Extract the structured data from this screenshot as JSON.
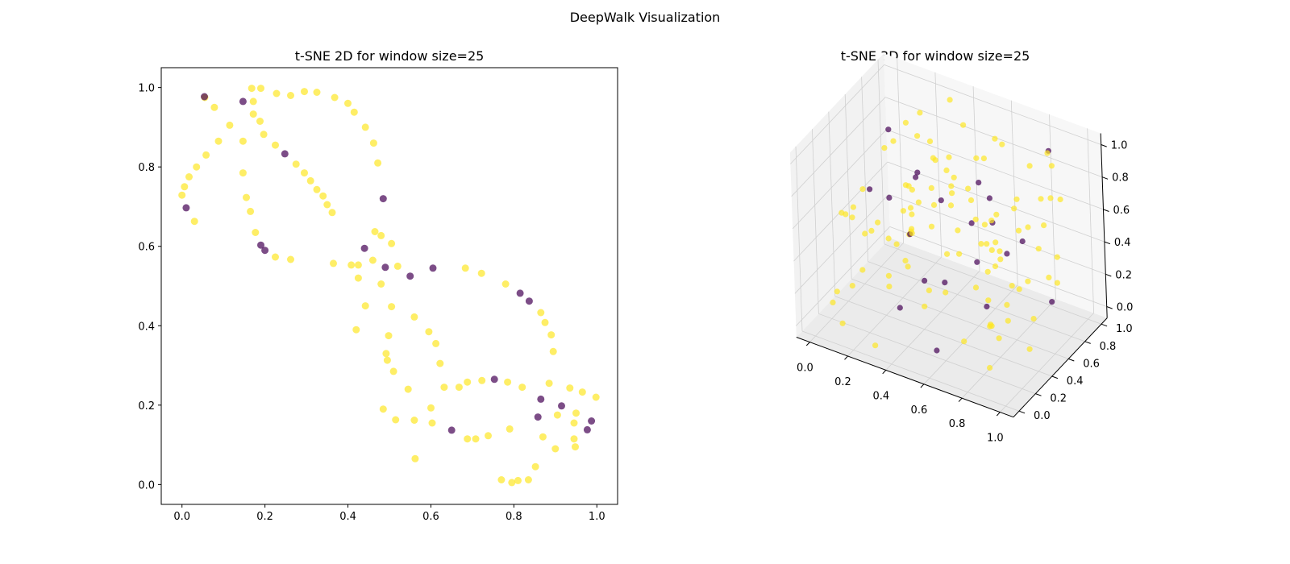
{
  "figure": {
    "suptitle": "DeepWalk Visualization"
  },
  "colors": {
    "class_a": "#fde725",
    "class_b": "#440154",
    "pane": "#f2f2f2",
    "grid": "#d0d0d0"
  },
  "chart_data": [
    {
      "type": "scatter",
      "title": "t-SNE 2D for window size=25",
      "xlim": [
        -0.05,
        1.05
      ],
      "ylim": [
        -0.05,
        1.05
      ],
      "xticks": [
        "0.0",
        "0.2",
        "0.4",
        "0.6",
        "0.8",
        "1.0"
      ],
      "yticks": [
        "0.0",
        "0.2",
        "0.4",
        "0.6",
        "0.8",
        "1.0"
      ],
      "grid": false,
      "point_alpha": 0.7,
      "points": [
        [
          0.0,
          0.729,
          0
        ],
        [
          0.006,
          0.75,
          0
        ],
        [
          0.017,
          0.775,
          0
        ],
        [
          0.03,
          0.663,
          0
        ],
        [
          0.035,
          0.8,
          0
        ],
        [
          0.058,
          0.83,
          0
        ],
        [
          0.078,
          0.95,
          0
        ],
        [
          0.088,
          0.865,
          0
        ],
        [
          0.115,
          0.905,
          0
        ],
        [
          0.147,
          0.865,
          0
        ],
        [
          0.147,
          0.785,
          0
        ],
        [
          0.155,
          0.723,
          0
        ],
        [
          0.165,
          0.688,
          0
        ],
        [
          0.168,
          0.998,
          0
        ],
        [
          0.172,
          0.965,
          0
        ],
        [
          0.172,
          0.933,
          0
        ],
        [
          0.177,
          0.635,
          0
        ],
        [
          0.19,
          0.998,
          0
        ],
        [
          0.188,
          0.915,
          0
        ],
        [
          0.197,
          0.882,
          0
        ],
        [
          0.228,
          0.985,
          0
        ],
        [
          0.225,
          0.855,
          0
        ],
        [
          0.225,
          0.573,
          0
        ],
        [
          0.262,
          0.98,
          0
        ],
        [
          0.262,
          0.567,
          0
        ],
        [
          0.275,
          0.807,
          0
        ],
        [
          0.295,
          0.99,
          0
        ],
        [
          0.295,
          0.785,
          0
        ],
        [
          0.31,
          0.765,
          0
        ],
        [
          0.325,
          0.988,
          0
        ],
        [
          0.325,
          0.743,
          0
        ],
        [
          0.34,
          0.727,
          0
        ],
        [
          0.35,
          0.705,
          0
        ],
        [
          0.362,
          0.685,
          0
        ],
        [
          0.368,
          0.975,
          0
        ],
        [
          0.365,
          0.557,
          0
        ],
        [
          0.4,
          0.96,
          0
        ],
        [
          0.408,
          0.553,
          0
        ],
        [
          0.415,
          0.938,
          0
        ],
        [
          0.42,
          0.39,
          0
        ],
        [
          0.425,
          0.553,
          0
        ],
        [
          0.425,
          0.52,
          0
        ],
        [
          0.442,
          0.9,
          0
        ],
        [
          0.442,
          0.45,
          0
        ],
        [
          0.462,
          0.86,
          0
        ],
        [
          0.46,
          0.565,
          0
        ],
        [
          0.465,
          0.637,
          0
        ],
        [
          0.472,
          0.81,
          0
        ],
        [
          0.48,
          0.627,
          0
        ],
        [
          0.48,
          0.505,
          0
        ],
        [
          0.485,
          0.19,
          0
        ],
        [
          0.492,
          0.33,
          0
        ],
        [
          0.495,
          0.313,
          0
        ],
        [
          0.498,
          0.375,
          0
        ],
        [
          0.505,
          0.607,
          0
        ],
        [
          0.505,
          0.448,
          0
        ],
        [
          0.51,
          0.285,
          0
        ],
        [
          0.515,
          0.163,
          0
        ],
        [
          0.52,
          0.55,
          0
        ],
        [
          0.545,
          0.24,
          0
        ],
        [
          0.56,
          0.422,
          0
        ],
        [
          0.56,
          0.162,
          0
        ],
        [
          0.562,
          0.065,
          0
        ],
        [
          0.595,
          0.385,
          0
        ],
        [
          0.6,
          0.193,
          0
        ],
        [
          0.603,
          0.155,
          0
        ],
        [
          0.612,
          0.355,
          0
        ],
        [
          0.622,
          0.305,
          0
        ],
        [
          0.632,
          0.245,
          0
        ],
        [
          0.668,
          0.245,
          0
        ],
        [
          0.683,
          0.545,
          0
        ],
        [
          0.688,
          0.258,
          0
        ],
        [
          0.688,
          0.115,
          0
        ],
        [
          0.708,
          0.115,
          0
        ],
        [
          0.722,
          0.532,
          0
        ],
        [
          0.723,
          0.262,
          0
        ],
        [
          0.738,
          0.123,
          0
        ],
        [
          0.77,
          0.012,
          0
        ],
        [
          0.78,
          0.505,
          0
        ],
        [
          0.785,
          0.258,
          0
        ],
        [
          0.79,
          0.14,
          0
        ],
        [
          0.795,
          0.005,
          0
        ],
        [
          0.81,
          0.01,
          0
        ],
        [
          0.82,
          0.245,
          0
        ],
        [
          0.835,
          0.012,
          0
        ],
        [
          0.852,
          0.045,
          0
        ],
        [
          0.865,
          0.433,
          0
        ],
        [
          0.87,
          0.12,
          0
        ],
        [
          0.875,
          0.408,
          0
        ],
        [
          0.885,
          0.255,
          0
        ],
        [
          0.89,
          0.377,
          0
        ],
        [
          0.895,
          0.335,
          0
        ],
        [
          0.9,
          0.09,
          0
        ],
        [
          0.905,
          0.175,
          0
        ],
        [
          0.935,
          0.243,
          0
        ],
        [
          0.945,
          0.155,
          0
        ],
        [
          0.945,
          0.115,
          0
        ],
        [
          0.948,
          0.095,
          0
        ],
        [
          0.95,
          0.18,
          0
        ],
        [
          0.965,
          0.233,
          0
        ],
        [
          0.998,
          0.22,
          0
        ],
        [
          0.055,
          0.975,
          0
        ],
        [
          0.01,
          0.697,
          1
        ],
        [
          0.054,
          0.977,
          1
        ],
        [
          0.147,
          0.965,
          1
        ],
        [
          0.19,
          0.603,
          1
        ],
        [
          0.2,
          0.59,
          1
        ],
        [
          0.248,
          0.833,
          1
        ],
        [
          0.44,
          0.595,
          1
        ],
        [
          0.485,
          0.72,
          1
        ],
        [
          0.49,
          0.547,
          1
        ],
        [
          0.55,
          0.525,
          1
        ],
        [
          0.605,
          0.545,
          1
        ],
        [
          0.65,
          0.137,
          1
        ],
        [
          0.753,
          0.265,
          1
        ],
        [
          0.815,
          0.482,
          1
        ],
        [
          0.837,
          0.462,
          1
        ],
        [
          0.858,
          0.17,
          1
        ],
        [
          0.865,
          0.215,
          1
        ],
        [
          0.915,
          0.198,
          1
        ],
        [
          0.977,
          0.138,
          1
        ],
        [
          0.987,
          0.16,
          1
        ]
      ]
    },
    {
      "type": "scatter",
      "title": "t-SNE 3D for window size=25",
      "xlim": [
        0,
        1
      ],
      "ylim": [
        0,
        1
      ],
      "zlim": [
        0,
        1
      ],
      "xticks": [
        "0.0",
        "0.2",
        "0.4",
        "0.6",
        "0.8",
        "1.0"
      ],
      "yticks": [
        "0.0",
        "0.2",
        "0.4",
        "0.6",
        "0.8",
        "1.0"
      ],
      "zticks": [
        "0.0",
        "0.2",
        "0.4",
        "0.6",
        "0.8",
        "1.0"
      ],
      "grid": true,
      "point_alpha": 0.7
    }
  ]
}
